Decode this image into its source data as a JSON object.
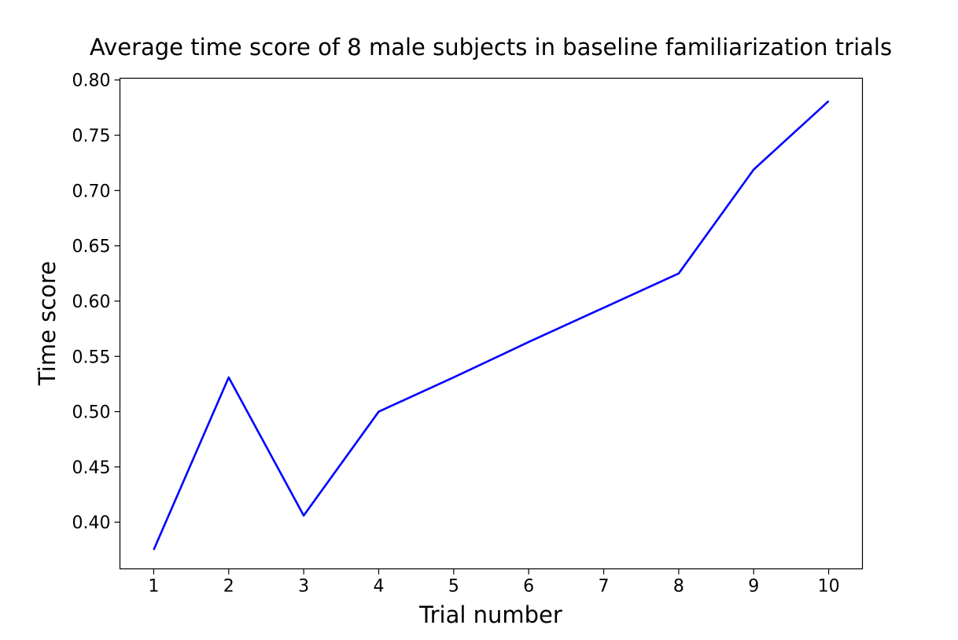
{
  "chart_data": {
    "type": "line",
    "title": "Average time score of 8 male subjects in baseline familiarization trials",
    "xlabel": "Trial number",
    "ylabel": "Time score",
    "x": [
      1,
      2,
      3,
      4,
      5,
      6,
      7,
      8,
      9,
      10
    ],
    "x_tick_labels": [
      "1",
      "2",
      "3",
      "4",
      "5",
      "6",
      "7",
      "8",
      "9",
      "10"
    ],
    "y_tick_values": [
      0.4,
      0.45,
      0.5,
      0.55,
      0.6,
      0.65,
      0.7,
      0.75,
      0.8
    ],
    "y_tick_labels": [
      "0.40",
      "0.45",
      "0.50",
      "0.55",
      "0.60",
      "0.65",
      "0.70",
      "0.75",
      "0.80"
    ],
    "series": [
      {
        "values": [
          0.375,
          0.531,
          0.406,
          0.5,
          0.531,
          0.563,
          0.594,
          0.625,
          0.719,
          0.781
        ],
        "color": "#0000ff"
      }
    ],
    "xlim": [
      0.55,
      10.45
    ],
    "ylim": [
      0.3578,
      0.8016
    ],
    "grid": false,
    "legend": "none"
  }
}
